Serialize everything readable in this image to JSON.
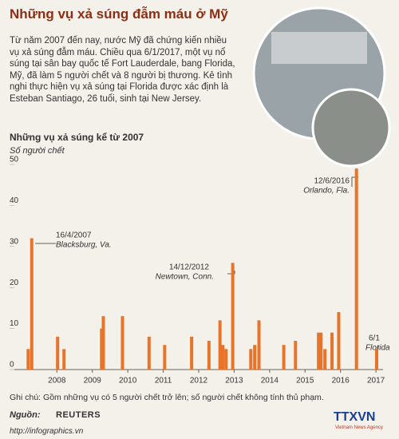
{
  "header": {
    "title": "Những vụ xả súng đẫm máu ở Mỹ"
  },
  "intro": "Từ năm 2007 đến nay, nước Mỹ đã chứng kiến nhiều vụ xả súng đẫm máu. Chiều qua 6/1/2017, một vụ nổ súng tại sân bay quốc tế Fort Lauderdale, bang Florida, Mỹ, đã làm 5 người chết và 8 người bị thương. Kẻ tình nghi thực hiện vụ xả súng tại Florida được xác định là Esteban Santiago, 26 tuổi, sinh tại New Jersey.",
  "chart_data": {
    "type": "bar",
    "title": "Những vụ xả súng kể từ 2007",
    "y_label": "Số người chết",
    "color": "#e8742a",
    "x": [
      2007.19,
      2007.29,
      2008.02,
      2008.2,
      2009.26,
      2009.31,
      2009.85,
      2010.6,
      2011.04,
      2011.8,
      2012.29,
      2012.6,
      2012.68,
      2012.77,
      2012.96,
      2013.47,
      2013.58,
      2013.7,
      2014.4,
      2014.73,
      2015.38,
      2015.45,
      2015.56,
      2015.76,
      2015.95,
      2016.45,
      2017.02
    ],
    "values": [
      5,
      32,
      8,
      5,
      10,
      13,
      13,
      8,
      6,
      8,
      7,
      12,
      6,
      5,
      26,
      5,
      6,
      12,
      6,
      7,
      9,
      9,
      5,
      9,
      14,
      49,
      5
    ],
    "xlim": [
      2006.8,
      2017.2
    ],
    "xticks": [
      2008,
      2009,
      2010,
      2011,
      2012,
      2013,
      2014,
      2015,
      2016,
      2017
    ],
    "ylim": [
      0,
      50
    ],
    "yticks": [
      0,
      10,
      20,
      30,
      40,
      50
    ],
    "annotations": [
      {
        "date": "16/4/2007",
        "place": "Blacksburg, Va."
      },
      {
        "date": "14/12/2012",
        "place": "Newtown, Conn."
      },
      {
        "date": "12/6/2016",
        "place": "Orlando, Fla."
      },
      {
        "date": "6/1",
        "place": "Florida"
      }
    ]
  },
  "note": "Ghi chú: Gồm những vụ có 5 người chết trở lên; số người chết không tính thủ phạm.",
  "source": {
    "label": "Nguồn:",
    "name": "REUTERS"
  },
  "footer": {
    "url": "http://infographics.vn",
    "logo": "TTXVN",
    "logo_sub": "Vietnam News Agency"
  }
}
